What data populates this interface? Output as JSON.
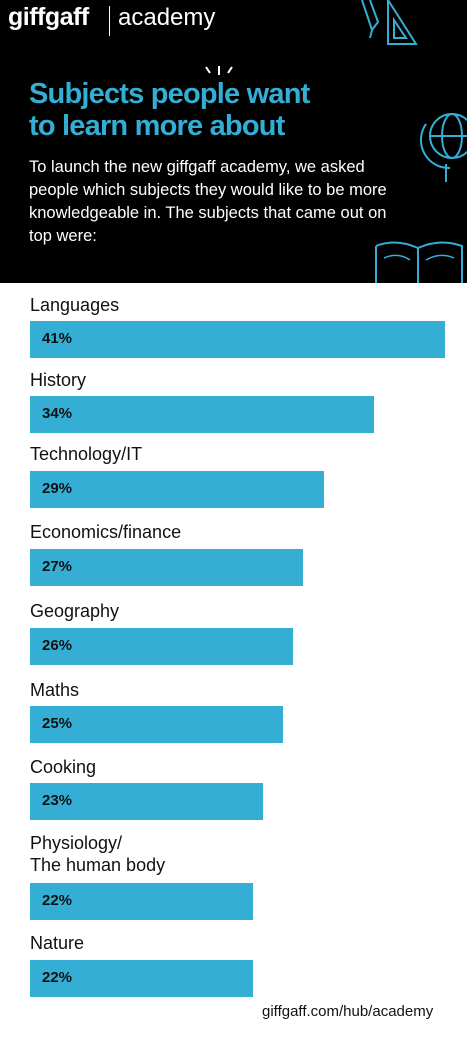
{
  "header": {
    "brand": "giffgaff",
    "brand_sub": "academy",
    "headline_line1": "Subjects people want",
    "headline_line2": "to learn more about",
    "intro": "To launch the new giffgaff academy, we asked people which subjects they would like to be more knowledgeable in. The subjects that came out on top were:"
  },
  "footer": {
    "url": "giffgaff.com/hub/academy"
  },
  "colors": {
    "bar": "#35aed6",
    "header_bg": "#000000",
    "headline": "#35aed6"
  },
  "icons": [
    "sparkle-icon",
    "pencil-icon",
    "set-square-icon",
    "globe-icon",
    "open-book-icon"
  ],
  "chart_data": {
    "type": "bar",
    "orientation": "horizontal",
    "categories": [
      "Languages",
      "History",
      "Technology/IT",
      "Economics/finance",
      "Geography",
      "Maths",
      "Cooking",
      "Physiology/\nThe human body",
      "Nature"
    ],
    "values": [
      41,
      34,
      29,
      27,
      26,
      25,
      23,
      22,
      22
    ],
    "value_labels": [
      "41%",
      "34%",
      "29%",
      "27%",
      "26%",
      "25%",
      "23%",
      "22%",
      "22%"
    ],
    "unit": "%"
  }
}
